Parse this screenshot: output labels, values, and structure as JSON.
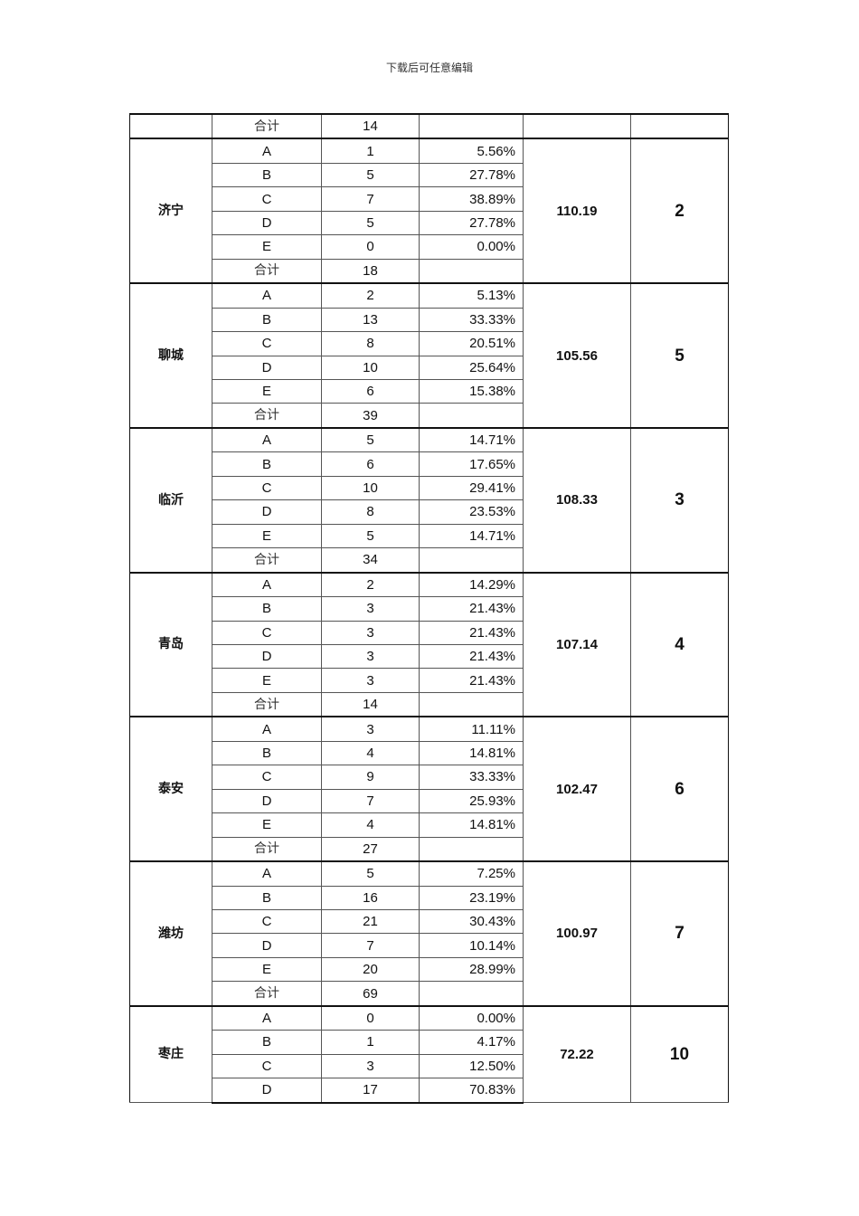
{
  "header": "下载后可任意编辑",
  "total_label": "合计",
  "continued_row": {
    "total": "14"
  },
  "groups": [
    {
      "city": "济宁",
      "score": "110.19",
      "rank": "2",
      "rows": [
        [
          "A",
          "1",
          "5.56%"
        ],
        [
          "B",
          "5",
          "27.78%"
        ],
        [
          "C",
          "7",
          "38.89%"
        ],
        [
          "D",
          "5",
          "27.78%"
        ],
        [
          "E",
          "0",
          "0.00%"
        ]
      ],
      "total": "18"
    },
    {
      "city": "聊城",
      "score": "105.56",
      "rank": "5",
      "rows": [
        [
          "A",
          "2",
          "5.13%"
        ],
        [
          "B",
          "13",
          "33.33%"
        ],
        [
          "C",
          "8",
          "20.51%"
        ],
        [
          "D",
          "10",
          "25.64%"
        ],
        [
          "E",
          "6",
          "15.38%"
        ]
      ],
      "total": "39"
    },
    {
      "city": "临沂",
      "score": "108.33",
      "rank": "3",
      "rows": [
        [
          "A",
          "5",
          "14.71%"
        ],
        [
          "B",
          "6",
          "17.65%"
        ],
        [
          "C",
          "10",
          "29.41%"
        ],
        [
          "D",
          "8",
          "23.53%"
        ],
        [
          "E",
          "5",
          "14.71%"
        ]
      ],
      "total": "34"
    },
    {
      "city": "青岛",
      "score": "107.14",
      "rank": "4",
      "rows": [
        [
          "A",
          "2",
          "14.29%"
        ],
        [
          "B",
          "3",
          "21.43%"
        ],
        [
          "C",
          "3",
          "21.43%"
        ],
        [
          "D",
          "3",
          "21.43%"
        ],
        [
          "E",
          "3",
          "21.43%"
        ]
      ],
      "total": "14"
    },
    {
      "city": "泰安",
      "score": "102.47",
      "rank": "6",
      "rows": [
        [
          "A",
          "3",
          "11.11%"
        ],
        [
          "B",
          "4",
          "14.81%"
        ],
        [
          "C",
          "9",
          "33.33%"
        ],
        [
          "D",
          "7",
          "25.93%"
        ],
        [
          "E",
          "4",
          "14.81%"
        ]
      ],
      "total": "27"
    },
    {
      "city": "潍坊",
      "score": "100.97",
      "rank": "7",
      "rows": [
        [
          "A",
          "5",
          "7.25%"
        ],
        [
          "B",
          "16",
          "23.19%"
        ],
        [
          "C",
          "21",
          "30.43%"
        ],
        [
          "D",
          "7",
          "10.14%"
        ],
        [
          "E",
          "20",
          "28.99%"
        ]
      ],
      "total": "69"
    },
    {
      "city": "枣庄",
      "score": "72.22",
      "rank": "10",
      "rows": [
        [
          "A",
          "0",
          "0.00%"
        ],
        [
          "B",
          "1",
          "4.17%"
        ],
        [
          "C",
          "3",
          "12.50%"
        ],
        [
          "D",
          "17",
          "70.83%"
        ]
      ]
    }
  ]
}
